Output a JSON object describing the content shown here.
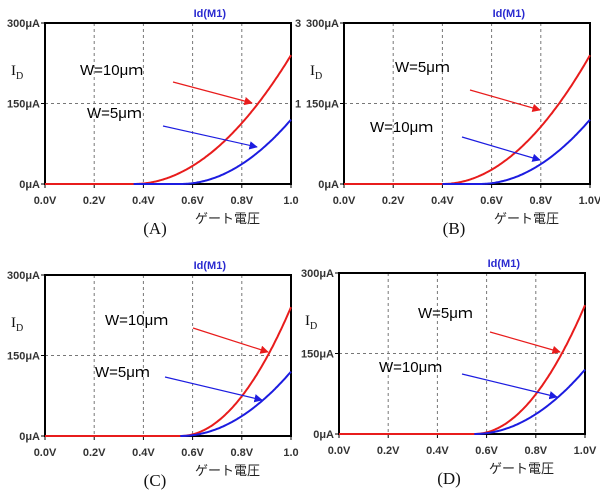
{
  "chart_data": [
    {
      "type": "line",
      "panel_label": "(A)",
      "title": "Id(M1)",
      "ylabel": "I",
      "ylabel_sub": "D",
      "xlabel": "ゲート電圧",
      "xlim": [
        0,
        1
      ],
      "ylim": [
        0,
        300
      ],
      "x_ticks": [
        "0.0V",
        "0.2V",
        "0.4V",
        "0.6V",
        "0.8V",
        "1.0"
      ],
      "y_ticks": [
        "0μA",
        "150μA",
        "300μA"
      ],
      "series": [
        {
          "name": "W=10μm",
          "color": "#e81c1c",
          "vth": 0.36,
          "i_at_1V": 240,
          "start": 0
        },
        {
          "name": "W=5μm",
          "color": "#1c1ce0",
          "vth": 0.55,
          "i_at_1V": 120,
          "start": 0.36
        }
      ],
      "annotations": [
        "W=10μｍ",
        "W=5μｍ"
      ],
      "right_ticks": [
        "3",
        "1"
      ]
    },
    {
      "type": "line",
      "panel_label": "(B)",
      "title": "Id(M1)",
      "ylabel": "I",
      "ylabel_sub": "D",
      "xlabel": "ゲート電圧",
      "xlim": [
        0,
        1
      ],
      "ylim": [
        0,
        300
      ],
      "x_ticks": [
        "0.0V",
        "0.2V",
        "0.4V",
        "0.6V",
        "0.8V",
        "1.0V"
      ],
      "y_ticks": [
        "0μA",
        "150μA",
        "300μA"
      ],
      "series": [
        {
          "name": "W=5μm",
          "color": "#e81c1c",
          "vth": 0.4,
          "i_at_1V": 240,
          "start": 0
        },
        {
          "name": "W=10μm",
          "color": "#1c1ce0",
          "vth": 0.55,
          "i_at_1V": 120,
          "start": 0.4
        }
      ],
      "annotations": [
        "W=5μｍ",
        "W=10μｍ"
      ],
      "right_ticks": []
    },
    {
      "type": "line",
      "panel_label": "(C)",
      "title": "Id(M1)",
      "ylabel": "I",
      "ylabel_sub": "D",
      "xlabel": "ゲート電圧",
      "xlim": [
        0,
        1
      ],
      "ylim": [
        0,
        300
      ],
      "x_ticks": [
        "0.0V",
        "0.2V",
        "0.4V",
        "0.6V",
        "0.8V",
        "1.0"
      ],
      "y_ticks": [
        "0μA",
        "150μA",
        "300μA"
      ],
      "series": [
        {
          "name": "W=10μm",
          "color": "#e81c1c",
          "vth": 0.55,
          "i_at_1V": 240,
          "start": 0
        },
        {
          "name": "W=5μm",
          "color": "#1c1ce0",
          "vth": 0.55,
          "i_at_1V": 120,
          "start": 0.55
        }
      ],
      "annotations": [
        "W=10μｍ",
        "W=5μｍ"
      ],
      "right_ticks": []
    },
    {
      "type": "line",
      "panel_label": "(D)",
      "title": "Id(M1)",
      "ylabel": "I",
      "ylabel_sub": "D",
      "xlabel": "ゲート電圧",
      "xlim": [
        0,
        1
      ],
      "ylim": [
        0,
        300
      ],
      "x_ticks": [
        "0.0V",
        "0.2V",
        "0.4V",
        "0.6V",
        "0.8V",
        "1.0V"
      ],
      "y_ticks": [
        "0μA",
        "150μA",
        "300μA"
      ],
      "series": [
        {
          "name": "W=5μm",
          "color": "#e81c1c",
          "vth": 0.55,
          "i_at_1V": 240,
          "start": 0
        },
        {
          "name": "W=10μm",
          "color": "#1c1ce0",
          "vth": 0.55,
          "i_at_1V": 120,
          "start": 0.55
        }
      ],
      "annotations": [
        "W=5μｍ",
        "W=10μｍ"
      ],
      "right_ticks": []
    }
  ]
}
